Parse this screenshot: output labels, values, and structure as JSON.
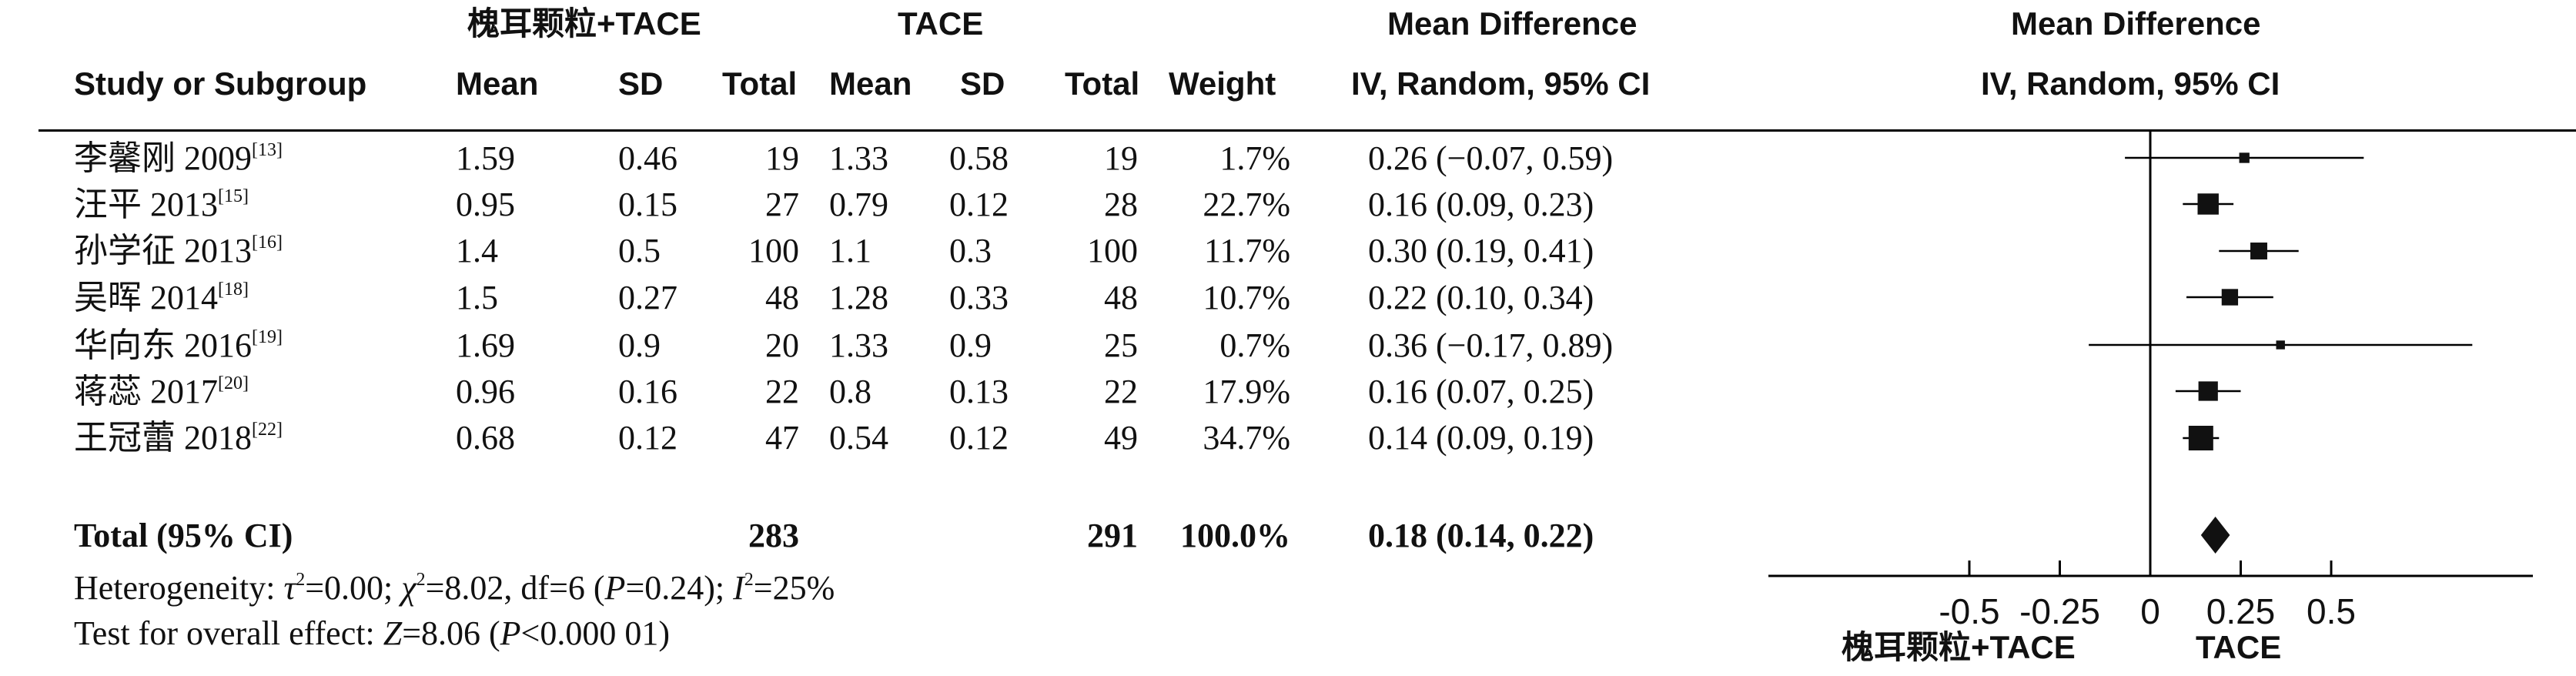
{
  "header": {
    "group1_title": "槐耳颗粒+TACE",
    "group2_title": "TACE",
    "md_title": "Mean Difference",
    "md_subtitle": "IV, Random, 95% CI",
    "plot_title": "Mean Difference",
    "plot_subtitle": "IV, Random, 95% CI",
    "col_study": "Study or Subgroup",
    "col_mean1": "Mean",
    "col_sd1": "SD",
    "col_total1": "Total",
    "col_mean2": "Mean",
    "col_sd2": "SD",
    "col_total2": "Total",
    "col_weight": "Weight"
  },
  "studies": [
    {
      "name": "李馨刚 2009",
      "ref": "[13]",
      "mean1": "1.59",
      "sd1": "0.46",
      "total1": "19",
      "mean2": "1.33",
      "sd2": "0.58",
      "total2": "19",
      "weight": "1.7%",
      "ci_text": "0.26 (−0.07, 0.59)"
    },
    {
      "name": "汪平 2013",
      "ref": "[15]",
      "mean1": "0.95",
      "sd1": "0.15",
      "total1": "27",
      "mean2": "0.79",
      "sd2": "0.12",
      "total2": "28",
      "weight": "22.7%",
      "ci_text": "0.16 (0.09, 0.23)"
    },
    {
      "name": "孙学征 2013",
      "ref": "[16]",
      "mean1": "1.4",
      "sd1": "0.5",
      "total1": "100",
      "mean2": "1.1",
      "sd2": "0.3",
      "total2": "100",
      "weight": "11.7%",
      "ci_text": "0.30 (0.19, 0.41)"
    },
    {
      "name": "吴晖 2014",
      "ref": "[18]",
      "mean1": "1.5",
      "sd1": "0.27",
      "total1": "48",
      "mean2": "1.28",
      "sd2": "0.33",
      "total2": "48",
      "weight": "10.7%",
      "ci_text": "0.22 (0.10, 0.34)"
    },
    {
      "name": "华向东 2016",
      "ref": "[19]",
      "mean1": "1.69",
      "sd1": "0.9",
      "total1": "20",
      "mean2": "1.33",
      "sd2": "0.9",
      "total2": "25",
      "weight": "0.7%",
      "ci_text": "0.36 (−0.17, 0.89)"
    },
    {
      "name": "蒋蕊 2017",
      "ref": "[20]",
      "mean1": "0.96",
      "sd1": "0.16",
      "total1": "22",
      "mean2": "0.8",
      "sd2": "0.13",
      "total2": "22",
      "weight": "17.9%",
      "ci_text": "0.16 (0.07, 0.25)"
    },
    {
      "name": "王冠蕾 2018",
      "ref": "[22]",
      "mean1": "0.68",
      "sd1": "0.12",
      "total1": "47",
      "mean2": "0.54",
      "sd2": "0.12",
      "total2": "49",
      "weight": "34.7%",
      "ci_text": "0.14 (0.09, 0.19)"
    }
  ],
  "total": {
    "label": "Total (95% CI)",
    "total1": "283",
    "total2": "291",
    "weight": "100.0%",
    "ci_text": "0.18 (0.14, 0.22)"
  },
  "heterogeneity": {
    "prefix": "Heterogeneity: ",
    "tau_sym": "τ",
    "tau_sup": "2",
    "tau_val": "=0.00; ",
    "chi_sym": "χ",
    "chi_sup": "2",
    "chi_val": "=8.02, df=6 (",
    "p_sym": "P",
    "p_val": "=0.24); ",
    "i_sym": "I",
    "i_sup": "2",
    "i_val": "=25%"
  },
  "overall": {
    "prefix": "Test for overall effect: ",
    "z_sym": "Z",
    "z_val": "=8.06 (",
    "p_sym": "P",
    "p_val": "<0.000 01)"
  },
  "axis": {
    "favours_left": "槐耳颗粒+TACE",
    "favours_right": "TACE"
  },
  "chart_data": {
    "type": "forest",
    "xlim": [
      -1.0,
      1.0
    ],
    "ticks": [
      -0.5,
      -0.25,
      0,
      0.25,
      0.5
    ],
    "tick_labels": [
      "-0.5",
      "-0.25",
      "0",
      "0.25",
      "0.5"
    ],
    "null_line": 0,
    "studies": [
      {
        "estimate": 0.26,
        "lower": -0.07,
        "upper": 0.59,
        "weight": 1.7
      },
      {
        "estimate": 0.16,
        "lower": 0.09,
        "upper": 0.23,
        "weight": 22.7
      },
      {
        "estimate": 0.3,
        "lower": 0.19,
        "upper": 0.41,
        "weight": 11.7
      },
      {
        "estimate": 0.22,
        "lower": 0.1,
        "upper": 0.34,
        "weight": 10.7
      },
      {
        "estimate": 0.36,
        "lower": -0.17,
        "upper": 0.89,
        "weight": 0.7
      },
      {
        "estimate": 0.16,
        "lower": 0.07,
        "upper": 0.25,
        "weight": 17.9
      },
      {
        "estimate": 0.14,
        "lower": 0.09,
        "upper": 0.19,
        "weight": 34.7
      }
    ],
    "pooled": {
      "estimate": 0.18,
      "lower": 0.14,
      "upper": 0.22
    }
  }
}
